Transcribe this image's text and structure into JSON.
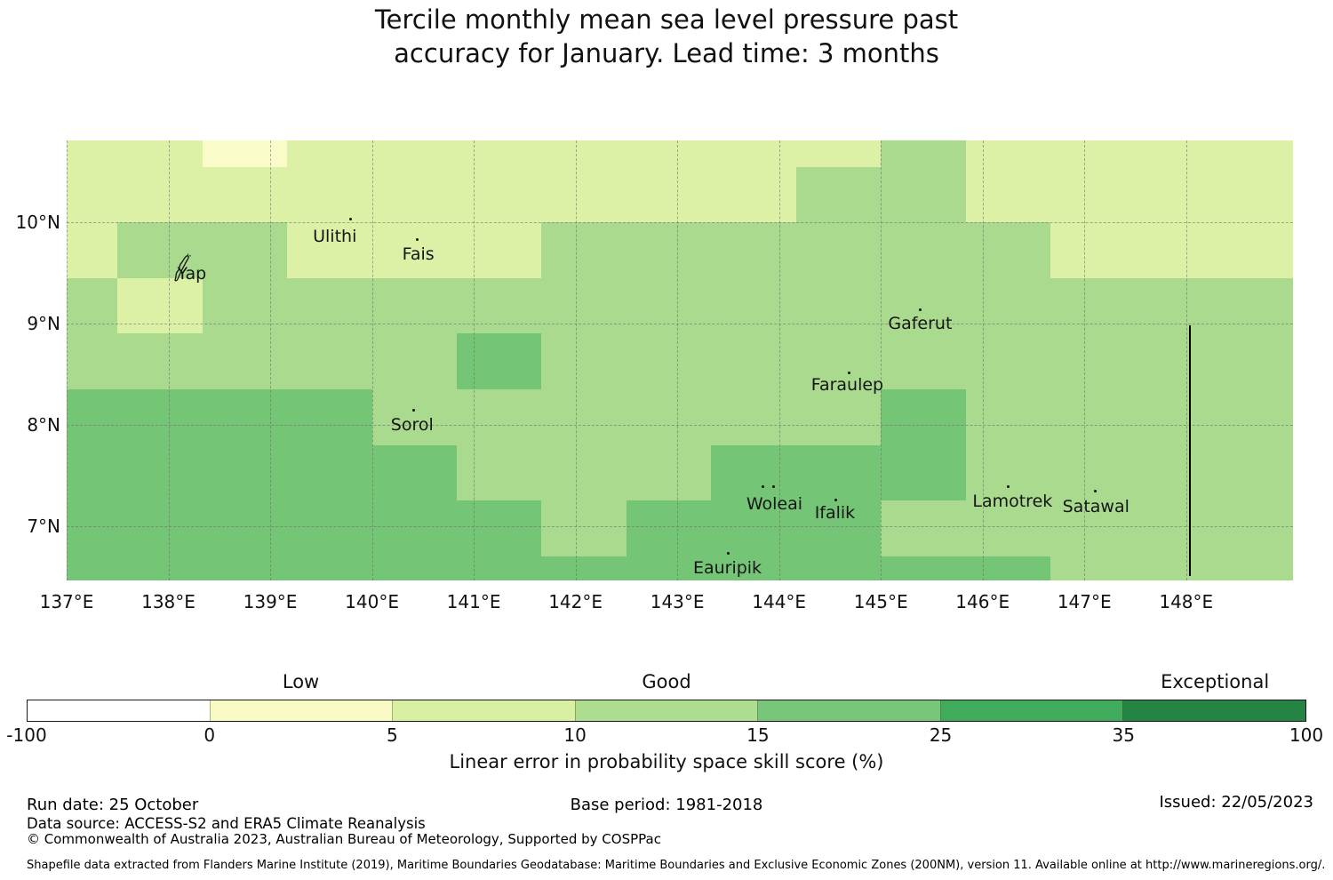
{
  "title": {
    "line1": "Tercile monthly mean sea level pressure past",
    "line2": "accuracy for January. Lead time: 3 months"
  },
  "chart_data": {
    "type": "heatmap",
    "title": "Tercile monthly mean sea level pressure past accuracy for January. Lead time: 3 months",
    "x_ticks": [
      {
        "lon": 137,
        "label": "137°E"
      },
      {
        "lon": 138,
        "label": "138°E"
      },
      {
        "lon": 139,
        "label": "139°E"
      },
      {
        "lon": 140,
        "label": "140°E"
      },
      {
        "lon": 141,
        "label": "141°E"
      },
      {
        "lon": 142,
        "label": "142°E"
      },
      {
        "lon": 143,
        "label": "143°E"
      },
      {
        "lon": 144,
        "label": "144°E"
      },
      {
        "lon": 145,
        "label": "145°E"
      },
      {
        "lon": 146,
        "label": "146°E"
      },
      {
        "lon": 147,
        "label": "147°E"
      },
      {
        "lon": 148,
        "label": "148°E"
      }
    ],
    "y_ticks": [
      {
        "lat": 10,
        "label": "10°N"
      },
      {
        "lat": 9,
        "label": "9°N"
      },
      {
        "lat": 8,
        "label": "8°N"
      },
      {
        "lat": 7,
        "label": "7°N"
      }
    ],
    "lon_range": [
      137.0,
      149.05
    ],
    "lat_range": [
      6.46,
      10.81
    ],
    "grid_on": true,
    "lon_edges": [
      137.0,
      137.5,
      138.333,
      139.167,
      140.0,
      140.833,
      141.667,
      142.5,
      143.333,
      144.167,
      145.0,
      145.833,
      146.667,
      147.5,
      148.333,
      149.05
    ],
    "lat_edges": [
      10.81,
      10.55,
      10.0,
      9.45,
      8.9,
      8.35,
      7.8,
      7.25,
      6.7,
      6.46
    ],
    "skill_bins": [
      "-100 to 0",
      "0 to 5",
      "5 to 10",
      "10 to 15",
      "15 to 25",
      "25 to 35",
      "35 to 100"
    ],
    "bin_colors": [
      "#ffffff",
      "#f9fcc9",
      "#dcf0a6",
      "#a9da8d",
      "#75c577",
      "#41ab5d",
      "#238443"
    ],
    "grid_bin_index": [
      [
        2,
        2,
        1,
        2,
        2,
        2,
        2,
        2,
        2,
        2,
        3,
        2,
        2,
        2,
        2
      ],
      [
        2,
        2,
        2,
        2,
        2,
        2,
        2,
        2,
        2,
        3,
        3,
        2,
        2,
        2,
        2
      ],
      [
        2,
        3,
        3,
        2,
        2,
        2,
        3,
        3,
        3,
        3,
        3,
        3,
        2,
        2,
        2
      ],
      [
        3,
        2,
        3,
        3,
        3,
        3,
        3,
        3,
        3,
        3,
        3,
        3,
        3,
        3,
        3
      ],
      [
        3,
        3,
        3,
        3,
        3,
        4,
        3,
        3,
        3,
        3,
        3,
        3,
        3,
        3,
        3
      ],
      [
        4,
        4,
        4,
        4,
        3,
        3,
        3,
        3,
        3,
        3,
        4,
        3,
        3,
        3,
        3
      ],
      [
        4,
        4,
        4,
        4,
        4,
        3,
        3,
        3,
        4,
        4,
        4,
        3,
        3,
        3,
        3
      ],
      [
        4,
        4,
        4,
        4,
        4,
        4,
        3,
        4,
        4,
        4,
        3,
        3,
        3,
        3,
        3
      ],
      [
        4,
        4,
        4,
        4,
        4,
        4,
        4,
        4,
        4,
        4,
        4,
        4,
        3,
        3,
        3
      ]
    ],
    "islands": [
      {
        "name": "Yap",
        "lon": 138.134,
        "lat": 9.562,
        "dots": []
      },
      {
        "name": "Ulithi",
        "lon": 139.792,
        "lat": 10.028,
        "dots": [
          [
            139.792,
            10.028
          ]
        ]
      },
      {
        "name": "Fais",
        "lon": 140.446,
        "lat": 9.834,
        "dots": [
          [
            140.446,
            9.834
          ]
        ]
      },
      {
        "name": "Sorol",
        "lon": 140.412,
        "lat": 8.147,
        "dots": [
          [
            140.412,
            8.147
          ]
        ]
      },
      {
        "name": "Gaferut",
        "lon": 145.386,
        "lat": 9.132,
        "dots": [
          [
            145.386,
            9.132
          ]
        ]
      },
      {
        "name": "Faraulep",
        "lon": 144.688,
        "lat": 8.516,
        "dots": [
          [
            144.688,
            8.516
          ]
        ]
      },
      {
        "name": "Woleai",
        "lon": 143.841,
        "lat": 7.391,
        "dots": [
          [
            143.841,
            7.391
          ],
          [
            143.946,
            7.391
          ]
        ]
      },
      {
        "name": "Ifalik",
        "lon": 144.557,
        "lat": 7.259,
        "dots": [
          [
            144.557,
            7.259
          ]
        ]
      },
      {
        "name": "Eauripik",
        "lon": 143.501,
        "lat": 6.732,
        "dots": [
          [
            143.501,
            6.732
          ]
        ]
      },
      {
        "name": "Lamotrek",
        "lon": 146.25,
        "lat": 7.383,
        "dots": [
          [
            146.25,
            7.383
          ]
        ]
      },
      {
        "name": "Satawal",
        "lon": 147.105,
        "lat": 7.347,
        "dots": [
          [
            147.105,
            7.347
          ]
        ]
      }
    ],
    "eez_boundary": {
      "lon": 148.04,
      "lat_from": 8.98,
      "lat_to": 6.5
    }
  },
  "colorbar": {
    "quality_labels": [
      {
        "label": "Low",
        "bin_center": 1.5
      },
      {
        "label": "Good",
        "bin_center": 3.5
      },
      {
        "label": "Exceptional",
        "bin_center": 6.5
      }
    ],
    "tick_labels": [
      "-100",
      "0",
      "5",
      "10",
      "15",
      "25",
      "35",
      "100"
    ],
    "segment_colors": [
      "#ffffff",
      "#f8fcc4",
      "#d9f0a3",
      "#addd8e",
      "#78c679",
      "#41ab5d",
      "#238443"
    ],
    "xlabel": "Linear error in probability space skill score (%)"
  },
  "footer": {
    "run_date": "Run date: 25 October",
    "base_period": "Base period: 1981-2018",
    "issued": "Issued: 22/05/2023",
    "data_source": "Data source: ACCESS-S2 and ERA5 Climate Reanalysis",
    "copyright": "© Commonwealth of Australia 2023, Australian Bureau of Meteorology, Supported by COSPPac",
    "shapefile_note": "Shapefile data extracted from Flanders Marine Institute (2019), Maritime Boundaries Geodatabase: Maritime Boundaries and Exclusive Economic Zones (200NM), version 11. Available online at http://www.marineregions.org/."
  }
}
